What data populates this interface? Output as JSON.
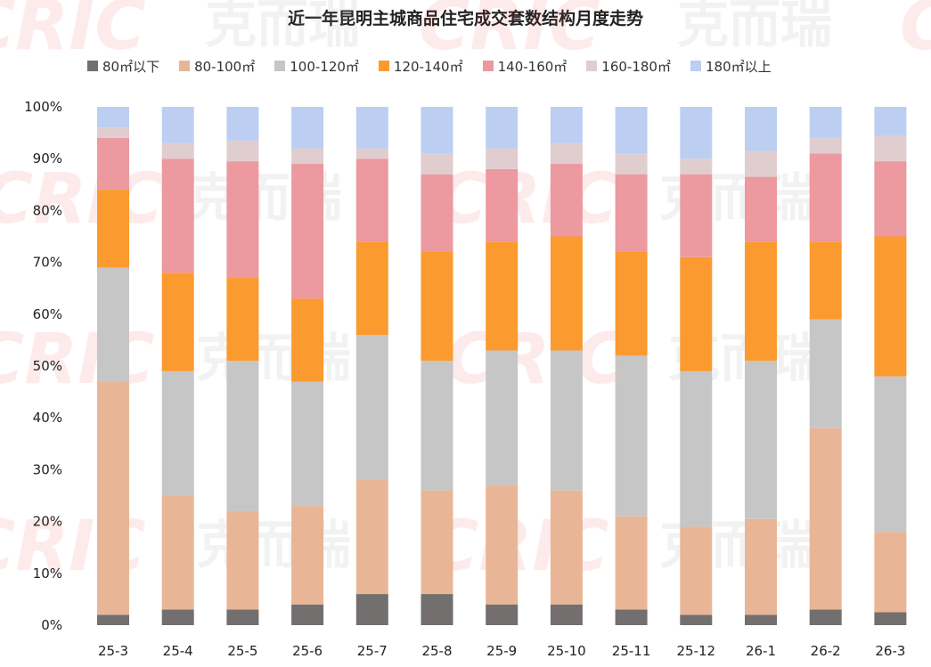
{
  "chart_data": {
    "type": "bar",
    "stacked": true,
    "normalized": true,
    "title": "近一年昆明主城商品住宅成交套数结构月度走势",
    "xlabel": "",
    "ylabel": "",
    "ylim": [
      0,
      100
    ],
    "y_ticks": [
      "0%",
      "10%",
      "20%",
      "30%",
      "40%",
      "50%",
      "60%",
      "70%",
      "80%",
      "90%",
      "100%"
    ],
    "categories": [
      "25-3",
      "25-4",
      "25-5",
      "25-6",
      "25-7",
      "25-8",
      "25-9",
      "25-10",
      "25-11",
      "25-12",
      "26-1",
      "26-2",
      "26-3"
    ],
    "legend_position": "top",
    "series": [
      {
        "name": "80㎡以下",
        "color": "#736f6e",
        "values": [
          2,
          3,
          3,
          4,
          6,
          6,
          4,
          4,
          3,
          2,
          2,
          3,
          2.5
        ]
      },
      {
        "name": "80-100㎡",
        "color": "#e8b696",
        "values": [
          45,
          22,
          19,
          19,
          22,
          20,
          23,
          22,
          18,
          17,
          18.5,
          35,
          15.5
        ]
      },
      {
        "name": "100-120㎡",
        "color": "#c6c6c6",
        "values": [
          22,
          24,
          29,
          24,
          28,
          25,
          26,
          27,
          31,
          30,
          30.5,
          21,
          30
        ]
      },
      {
        "name": "120-140㎡",
        "color": "#fb9a2e",
        "values": [
          15,
          19,
          16,
          16,
          18,
          21,
          21,
          22,
          20,
          22,
          23,
          15,
          27
        ]
      },
      {
        "name": "140-160㎡",
        "color": "#ec99a0",
        "values": [
          10,
          22,
          22.5,
          26,
          16,
          15,
          14,
          14,
          15,
          16,
          12.5,
          17,
          14.5
        ]
      },
      {
        "name": "160-180㎡",
        "color": "#e0cdcf",
        "values": [
          2,
          3,
          4,
          3,
          2,
          4,
          4,
          4,
          4,
          3,
          5,
          3,
          5
        ]
      },
      {
        "name": "180㎡以上",
        "color": "#bccff2",
        "values": [
          4,
          7,
          6.5,
          8,
          8,
          9,
          8,
          7,
          9,
          10,
          8.5,
          6,
          5.5
        ]
      }
    ],
    "watermark": [
      "CRIC",
      "克而瑞"
    ]
  }
}
